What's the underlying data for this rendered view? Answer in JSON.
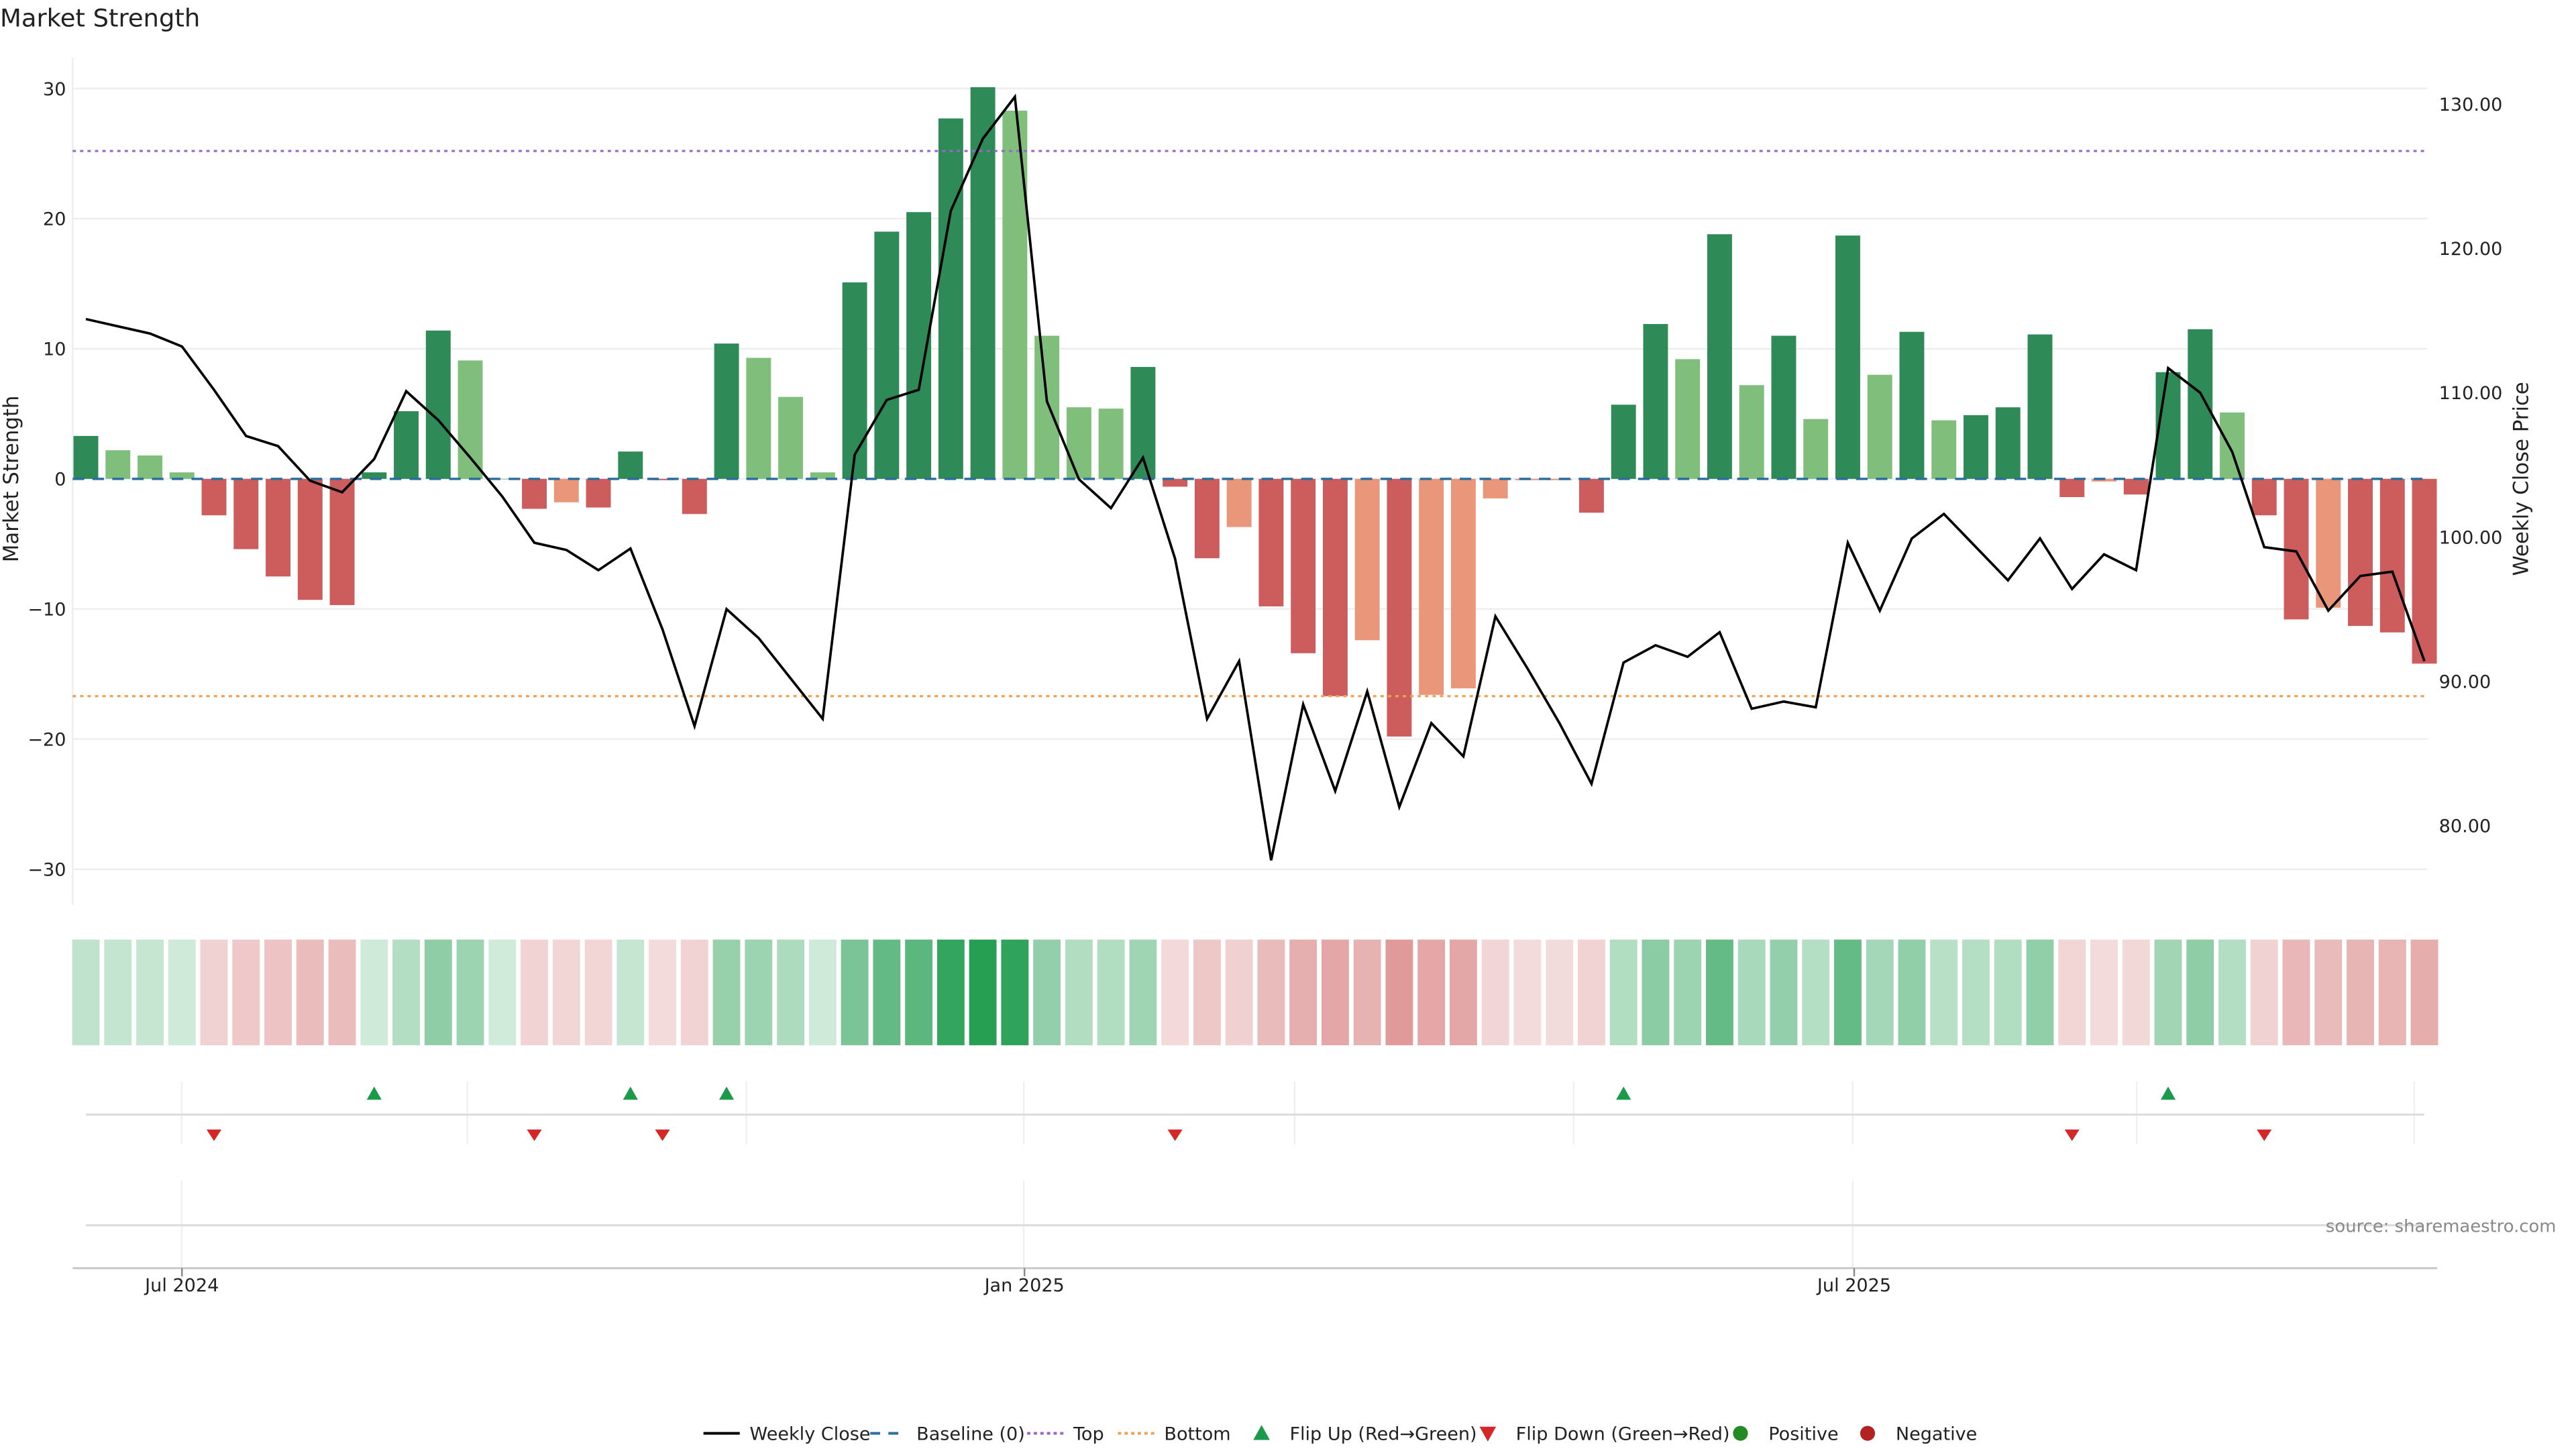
{
  "chart_data": {
    "type": "bar",
    "title": "Market Strength",
    "ylabel": "Market Strength",
    "y2label": "Weekly Close Price",
    "ylim": [
      -33,
      32
    ],
    "y2lim": [
      75,
      132
    ],
    "yticks": [
      "30",
      "20",
      "10",
      "0",
      "−10",
      "−20",
      "−30"
    ],
    "ytick_values": [
      30,
      20,
      10,
      0,
      -10,
      -20,
      -30
    ],
    "y2ticks": [
      "130.00",
      "120.00",
      "110.00",
      "100.00",
      "90.00",
      "80.00"
    ],
    "y2tick_values": [
      130,
      120,
      110,
      100,
      90,
      80
    ],
    "xticks": [
      {
        "label": "Jul 2024",
        "index": 3
      },
      {
        "label": "Jan 2025",
        "index": 29.3
      },
      {
        "label": "Jul 2025",
        "index": 55.2
      }
    ],
    "top_level": 25.2,
    "bottom_level": -16.7,
    "baseline": 0,
    "strength": [
      3.3,
      2.2,
      1.8,
      0.5,
      -2.8,
      -5.4,
      -7.5,
      -9.3,
      -9.7,
      0.5,
      5.2,
      11.4,
      9.1,
      0.0,
      -2.3,
      -1.8,
      -2.2,
      2.1,
      -0.1,
      -2.7,
      10.4,
      9.3,
      6.3,
      0.5,
      15.1,
      19.0,
      20.5,
      27.7,
      30.1,
      28.3,
      11.0,
      5.5,
      5.4,
      8.6,
      -0.6,
      -6.1,
      -3.7,
      -9.8,
      -13.4,
      -16.7,
      -12.4,
      -19.8,
      -16.6,
      -16.1,
      -1.5,
      -0.1,
      -0.1,
      -2.6,
      5.7,
      11.9,
      9.2,
      18.8,
      7.2,
      11.0,
      4.6,
      18.7,
      8.0,
      11.3,
      4.5,
      4.9,
      5.5,
      11.1,
      -1.4,
      -0.2,
      -1.2,
      8.2,
      11.5,
      5.1,
      -2.8,
      -10.8,
      -9.9,
      -11.3,
      -11.8,
      -14.2
    ],
    "bar_tone": [
      "d",
      "l",
      "l",
      "l",
      "r",
      "r",
      "r",
      "r",
      "r",
      "d",
      "d",
      "d",
      "l",
      "l",
      "r",
      "s",
      "r",
      "d",
      "r",
      "r",
      "d",
      "l",
      "l",
      "l",
      "d",
      "d",
      "d",
      "d",
      "d",
      "l",
      "l",
      "l",
      "l",
      "d",
      "r",
      "r",
      "s",
      "r",
      "r",
      "r",
      "s",
      "r",
      "s",
      "s",
      "s",
      "s",
      "s",
      "r",
      "d",
      "d",
      "l",
      "d",
      "l",
      "d",
      "l",
      "d",
      "l",
      "d",
      "l",
      "d",
      "d",
      "d",
      "r",
      "s",
      "r",
      "d",
      "d",
      "l",
      "r",
      "r",
      "s",
      "r",
      "r",
      "r"
    ],
    "weekly_close": [
      115.1,
      114.6,
      114.1,
      113.2,
      110.2,
      107.0,
      106.3,
      103.9,
      103.1,
      105.4,
      110.1,
      108.1,
      105.5,
      102.8,
      99.6,
      99.1,
      97.7,
      99.2,
      93.6,
      86.9,
      95.0,
      93.0,
      90.2,
      87.4,
      105.7,
      109.5,
      110.2,
      122.6,
      127.6,
      130.5,
      109.4,
      104.0,
      102.0,
      105.5,
      98.5,
      87.4,
      91.4,
      77.6,
      88.4,
      82.4,
      89.3,
      81.3,
      87.1,
      84.8,
      94.5,
      90.9,
      87.1,
      82.9,
      91.3,
      92.5,
      91.7,
      93.4,
      88.1,
      88.6,
      88.2,
      99.6,
      94.9,
      99.9,
      101.6,
      99.3,
      97.0,
      99.9,
      96.4,
      98.8,
      97.7,
      111.7,
      110.0,
      105.9,
      99.3,
      99.0,
      94.9,
      97.3,
      97.6,
      91.4
    ],
    "flip_up_indices": [
      9,
      17,
      20,
      48,
      65
    ],
    "flip_down_indices": [
      4,
      14,
      18,
      34,
      62,
      68
    ],
    "legend": [
      "Weekly Close",
      "Baseline (0)",
      "Top",
      "Bottom",
      "Flip Up (Red→Green)",
      "Flip Down (Green→Red)",
      "Positive",
      "Negative"
    ],
    "source": "source: sharemaestro.com"
  },
  "colors": {
    "dark_green": "#2e8b57",
    "light_green": "#7fbf7b",
    "red": "#cd5c5c",
    "salmon": "#e9967a",
    "top": "#9966cc",
    "bottom": "#f0a050",
    "baseline": "#2a6fa0",
    "flip_up": "#1a9a4a",
    "flip_down": "#d62728",
    "positive": "#228b22",
    "negative": "#b22222"
  }
}
